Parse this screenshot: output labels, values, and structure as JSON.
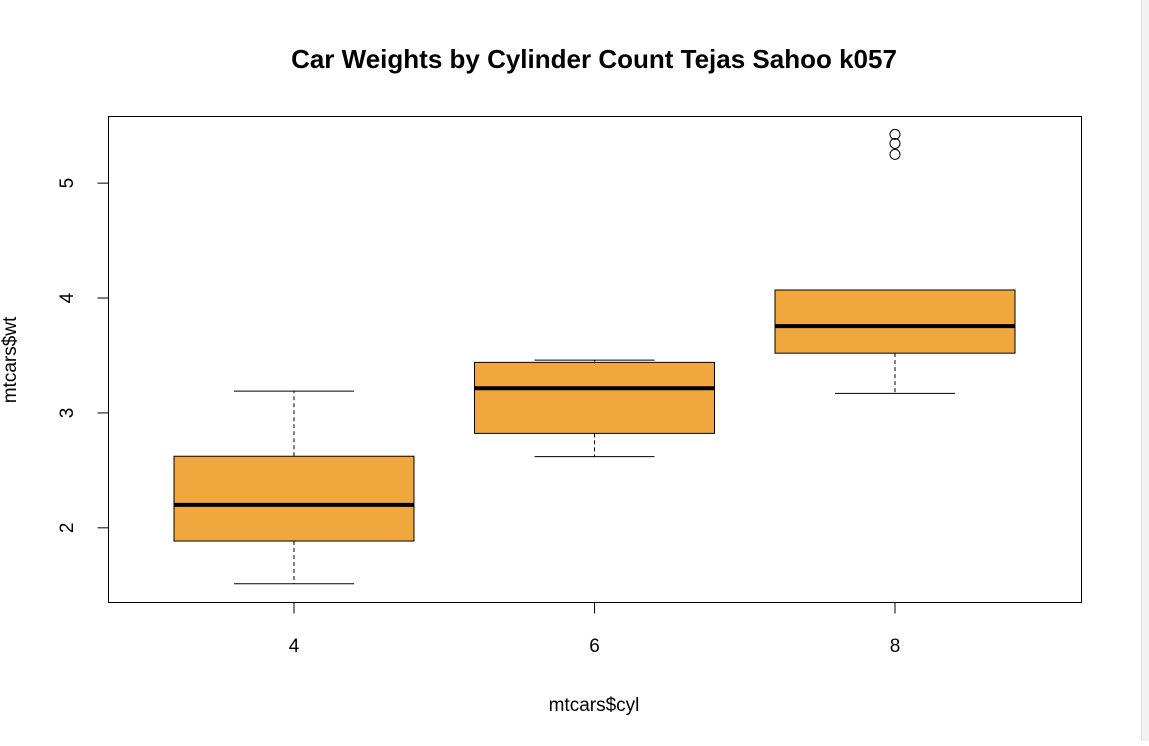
{
  "chart_data": {
    "type": "boxplot",
    "title": "Car Weights by Cylinder Count Tejas Sahoo k057",
    "xlabel": "mtcars$cyl",
    "ylabel": "mtcars$wt",
    "categories": [
      "4",
      "6",
      "8"
    ],
    "y_ticks": [
      2,
      3,
      4,
      5
    ],
    "ylim": [
      1.35,
      5.58
    ],
    "box_color": "#F0A83E",
    "boxes": [
      {
        "category": "4",
        "whisker_low": 1.513,
        "q1": 1.885,
        "median": 2.2,
        "q3": 2.623,
        "whisker_high": 3.19,
        "outliers": []
      },
      {
        "category": "6",
        "whisker_low": 2.62,
        "q1": 2.822,
        "median": 3.215,
        "q3": 3.44,
        "whisker_high": 3.46,
        "outliers": []
      },
      {
        "category": "8",
        "whisker_low": 3.17,
        "q1": 3.52,
        "median": 3.755,
        "q3": 4.07,
        "whisker_high": 4.07,
        "outliers": [
          5.25,
          5.345,
          5.424
        ]
      }
    ]
  }
}
